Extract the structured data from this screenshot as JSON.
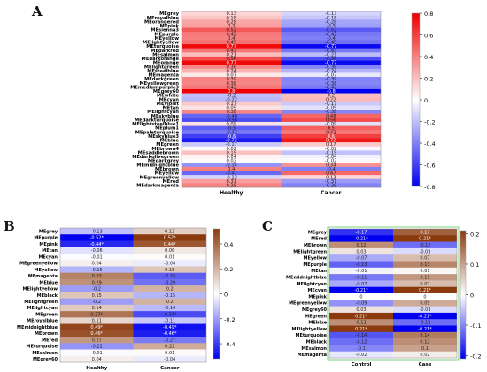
{
  "panels": {
    "A": {
      "letter": "A"
    },
    "B": {
      "letter": "B"
    },
    "C": {
      "letter": "C"
    }
  },
  "chart_data": [
    {
      "panel": "A",
      "type": "heatmap",
      "columns": [
        "Healthy",
        "Cancer"
      ],
      "rows": [
        "MEgrey",
        "MEroyalblue",
        "MEorangered",
        "MEpink",
        "MEsienna3",
        "MEpurple",
        "MEyellow",
        "MElightyellow",
        "MEturquoise",
        "MEdarkred",
        "MEsalmon",
        "MEdarkorange",
        "MEorange",
        "MElightgreen",
        "MEsteelblue",
        "MEmagenta",
        "MEdarkgreen",
        "MEyellowgreen",
        "MEmediumpurple3",
        "MEgrey60",
        "MEwhite",
        "MEcyan",
        "MEviolet",
        "MEtan",
        "MElightcyan",
        "MEskyblue",
        "MEdarkturquoise",
        "MElightsteelblue1",
        "MEplum1",
        "MEpaleturquoise",
        "MEskyblue3",
        "MEblue",
        "MEgreen",
        "MEbrown4",
        "MEsaddlebrown",
        "MEdarkolivegreen",
        "MEdarkgrey",
        "MEmidnightblue",
        "MEbrown",
        "MEyellow",
        "MEgreenyellow",
        "MEred",
        "MEdarkmagenta"
      ],
      "values": [
        [
          0.13,
          -0.13
        ],
        [
          0.18,
          -0.18
        ],
        [
          0.28,
          -0.28
        ],
        [
          0.3,
          -0.3
        ],
        [
          0.52,
          -0.52
        ],
        [
          0.42,
          -0.42
        ],
        [
          0.4,
          -0.4
        ],
        [
          0.45,
          -0.45
        ],
        [
          0.77,
          -0.77
        ],
        [
          0.43,
          -0.43
        ],
        [
          0.21,
          -0.21
        ],
        [
          0.56,
          -0.56
        ],
        [
          0.77,
          -0.77
        ],
        [
          0.38,
          -0.38
        ],
        [
          0.24,
          -0.24
        ],
        [
          0.07,
          -0.07
        ],
        [
          0.39,
          -0.39
        ],
        [
          0.38,
          -0.38
        ],
        [
          0.42,
          -0.42
        ],
        [
          0.8,
          -0.8
        ],
        [
          -0.2,
          0.2
        ],
        [
          -0.22,
          0.22
        ],
        [
          0.17,
          -0.17
        ],
        [
          0.09,
          -0.09
        ],
        [
          0.38,
          -0.38
        ],
        [
          -0.48,
          0.48
        ],
        [
          -0.56,
          0.56
        ],
        [
          0.09,
          -0.09
        ],
        [
          -0.5,
          0.5
        ],
        [
          -0.42,
          0.42
        ],
        [
          -0.6,
          0.6
        ],
        [
          -0.72,
          0.72
        ],
        [
          -0.17,
          0.17
        ],
        [
          0.02,
          -0.02
        ],
        [
          0.19,
          -0.19
        ],
        [
          0.04,
          -0.04
        ],
        [
          0.02,
          -0.02
        ],
        [
          -0.34,
          0.34
        ],
        [
          0.4,
          -0.4
        ],
        [
          -0.47,
          0.47
        ],
        [
          -0.13,
          0.13
        ],
        [
          0.31,
          -0.31
        ],
        [
          0.39,
          -0.39
        ]
      ],
      "cell_labels": [
        [
          "0.13",
          "-0.13"
        ],
        [
          "0.18",
          "-0.18"
        ],
        [
          "0.28",
          "-0.28"
        ],
        [
          "0.3",
          "-0.3"
        ],
        [
          "0.52",
          "-0.52"
        ],
        [
          "0.42",
          "-0.42"
        ],
        [
          "0.4",
          "-0.4"
        ],
        [
          "0.45",
          "-0.45"
        ],
        [
          "0.77",
          "-0.77"
        ],
        [
          "0.43",
          "-0.43"
        ],
        [
          "0.21",
          "-0.21"
        ],
        [
          "0.56",
          "-0.56"
        ],
        [
          "0.77",
          "-0.77"
        ],
        [
          "0.38",
          "-0.38"
        ],
        [
          "0.24",
          "-0.24"
        ],
        [
          "0.07",
          "-0.07"
        ],
        [
          "0.39",
          "-0.39"
        ],
        [
          "0.38",
          "-0.38"
        ],
        [
          "0.42",
          "-0.42"
        ],
        [
          "0.8",
          "-0.8"
        ],
        [
          "-0.2",
          "0.2"
        ],
        [
          "-0.22",
          "0.22"
        ],
        [
          "0.17",
          "-0.17"
        ],
        [
          "0.09",
          "-0.09"
        ],
        [
          "0.38",
          "-0.38"
        ],
        [
          "-0.48",
          "0.48"
        ],
        [
          "-0.56",
          "0.56"
        ],
        [
          "0.09",
          "-0.09"
        ],
        [
          "-0.5",
          "0.5"
        ],
        [
          "-0.42",
          "0.42"
        ],
        [
          "-0.6",
          "0.6"
        ],
        [
          "-0.72",
          "0.72"
        ],
        [
          "-0.17",
          "0.17"
        ],
        [
          "0.02",
          "-0.02"
        ],
        [
          "0.19",
          "-0.19"
        ],
        [
          "0.04",
          "-0.04"
        ],
        [
          "0.02",
          "-0.02"
        ],
        [
          "-0.34",
          "0.34"
        ],
        [
          "0.4",
          "-0.4"
        ],
        [
          "-0.47",
          "0.47"
        ],
        [
          "-0.13",
          "0.13"
        ],
        [
          "0.31",
          "-0.31"
        ],
        [
          "0.39",
          "-0.39"
        ]
      ],
      "colorbar": {
        "range": [
          -0.8,
          0.8
        ],
        "ticks": [
          "0.8",
          "0.6",
          "0.4",
          "0.2",
          "0",
          "-0.2",
          "-0.4",
          "-0.6",
          "-0.8"
        ],
        "low_color": "#0000ee",
        "mid_color": "#ffffff",
        "high_color": "#ee0000"
      }
    },
    {
      "panel": "B",
      "type": "heatmap",
      "columns": [
        "Healthy",
        "Cancer"
      ],
      "rows": [
        "MEgrey",
        "MEpurple",
        "MEpink",
        "MEtan",
        "MEcyan",
        "MEgreenyellow",
        "MEyellow",
        "MEmagenta",
        "MEblue",
        "MElightyellow",
        "MEblack",
        "MElightgreen",
        "MElightcyan",
        "MEgreen",
        "MEroyalblue",
        "MEmidnightblue",
        "MEbrown",
        "MEred",
        "MEturquoise",
        "MEsalmon",
        "MEgrey60"
      ],
      "values": [
        [
          -0.13,
          0.13
        ],
        [
          -0.52,
          0.52
        ],
        [
          -0.44,
          0.44
        ],
        [
          -0.06,
          0.06
        ],
        [
          -0.01,
          0.01
        ],
        [
          0.04,
          -0.04
        ],
        [
          -0.15,
          0.15
        ],
        [
          0.33,
          -0.33
        ],
        [
          0.29,
          -0.29
        ],
        [
          -0.2,
          0.2
        ],
        [
          0.15,
          -0.15
        ],
        [
          -0.2,
          0.2
        ],
        [
          0.14,
          -0.14
        ],
        [
          0.37,
          -0.37
        ],
        [
          0.11,
          -0.11
        ],
        [
          0.49,
          -0.49
        ],
        [
          0.46,
          -0.46
        ],
        [
          0.27,
          -0.27
        ],
        [
          -0.22,
          0.22
        ],
        [
          -0.01,
          0.01
        ],
        [
          0.04,
          -0.04
        ]
      ],
      "cell_labels": [
        [
          "-0.13",
          "0.13"
        ],
        [
          "-0.52*",
          "0.52*"
        ],
        [
          "-0.44*",
          "0.44*"
        ],
        [
          "-0.06",
          "0.06"
        ],
        [
          "-0.01",
          "0.01"
        ],
        [
          "0.04",
          "-0.04"
        ],
        [
          "-0.15",
          "0.15"
        ],
        [
          "0.33",
          "-0.33"
        ],
        [
          "0.29",
          "-0.29"
        ],
        [
          "-0.2",
          "0.2"
        ],
        [
          "0.15",
          "-0.15"
        ],
        [
          "-0.2",
          "0.2"
        ],
        [
          "0.14",
          "-0.14"
        ],
        [
          "0.37*",
          "-0.37*"
        ],
        [
          "0.11",
          "-0.11"
        ],
        [
          "0.49*",
          "-0.49*"
        ],
        [
          "0.46*",
          "-0.46*"
        ],
        [
          "0.27",
          "-0.27"
        ],
        [
          "-0.22",
          "0.22"
        ],
        [
          "-0.01",
          "0.01"
        ],
        [
          "0.04",
          "-0.04"
        ]
      ],
      "colorbar": {
        "range": [
          -0.52,
          0.52
        ],
        "ticks": [
          "0.4",
          "0.2",
          "0",
          "-0.2",
          "-0.4"
        ],
        "low_color": "#0000ee",
        "mid_color": "#ffffff",
        "high_color": "#8b3a0e"
      }
    },
    {
      "panel": "C",
      "type": "heatmap",
      "columns": [
        "Control",
        "Case"
      ],
      "rows": [
        "MEgrey",
        "MEred",
        "MEbrown",
        "MElightgreen",
        "MEyellow",
        "MEpurple",
        "MEtan",
        "MEmidnightblue",
        "MElightcyan",
        "MEcyan",
        "MEpink",
        "MEgreenyellow",
        "MEgrey60",
        "MEgreen",
        "MEblue",
        "MElightyellow",
        "MEturquoise",
        "MEblack",
        "MEsalmon",
        "MEmagenta"
      ],
      "values": [
        [
          -0.17,
          0.17
        ],
        [
          -0.21,
          0.21
        ],
        [
          0.12,
          -0.12
        ],
        [
          0.03,
          -0.03
        ],
        [
          -0.07,
          0.07
        ],
        [
          -0.13,
          0.13
        ],
        [
          -0.01,
          0.01
        ],
        [
          -0.11,
          0.11
        ],
        [
          -0.07,
          0.07
        ],
        [
          -0.21,
          0.21
        ],
        [
          0,
          0
        ],
        [
          -0.09,
          0.09
        ],
        [
          0.03,
          -0.03
        ],
        [
          0.21,
          -0.21
        ],
        [
          0.12,
          -0.12
        ],
        [
          0.21,
          -0.21
        ],
        [
          -0.14,
          0.14
        ],
        [
          -0.12,
          0.12
        ],
        [
          -0.1,
          0.1
        ],
        [
          -0.02,
          0.02
        ]
      ],
      "cell_labels": [
        [
          "-0.17",
          "0.17"
        ],
        [
          "-0.21*",
          "0.21*"
        ],
        [
          "0.12",
          "-0.12"
        ],
        [
          "0.03",
          "-0.03"
        ],
        [
          "-0.07",
          "0.07"
        ],
        [
          "-0.13",
          "0.13"
        ],
        [
          "-0.01",
          "0.01"
        ],
        [
          "-0.11",
          "0.11"
        ],
        [
          "-0.07",
          "0.07"
        ],
        [
          "-0.21*",
          "0.21*"
        ],
        [
          "0",
          "0"
        ],
        [
          "-0.09",
          "0.09"
        ],
        [
          "0.03",
          "-0.03"
        ],
        [
          "0.21*",
          "-0.21*"
        ],
        [
          "0.12",
          "-0.12"
        ],
        [
          "0.21*",
          "-0.21*"
        ],
        [
          "-0.14",
          "0.14"
        ],
        [
          "-0.12",
          "0.12"
        ],
        [
          "-0.1",
          "0.1"
        ],
        [
          "-0.02",
          "0.02"
        ]
      ],
      "colorbar": {
        "range": [
          -0.21,
          0.21
        ],
        "ticks": [
          "0.2",
          "0.1",
          "0",
          "-0.1",
          "-0.2"
        ],
        "low_color": "#0000ee",
        "mid_color": "#ffffff",
        "high_color": "#8b3a0e"
      }
    }
  ]
}
